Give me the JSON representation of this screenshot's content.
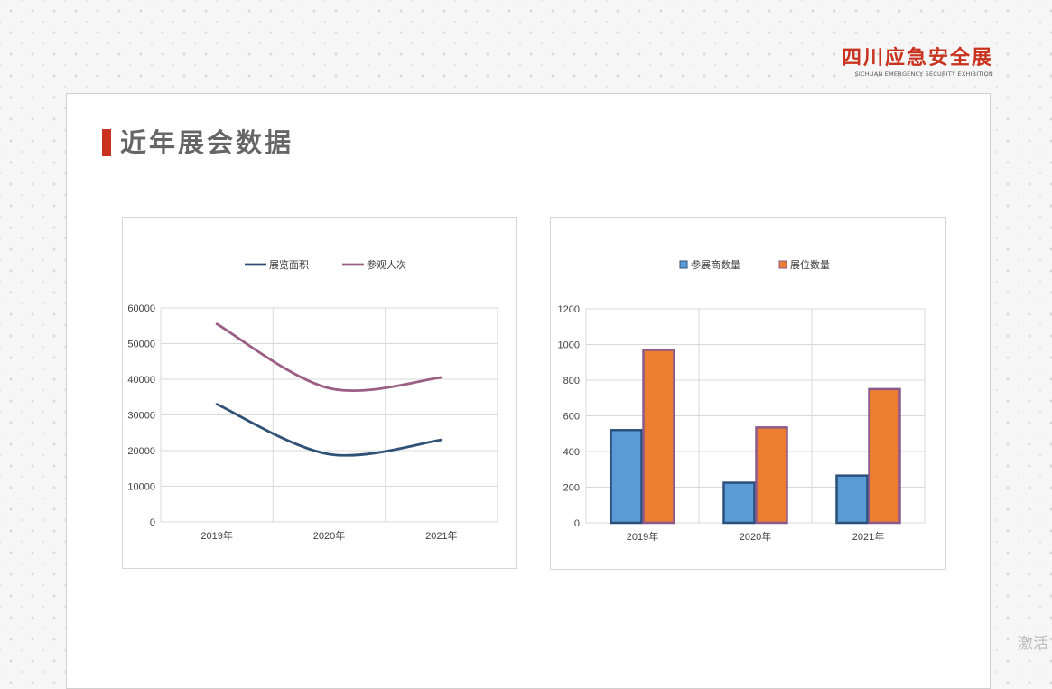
{
  "brand": {
    "name_cn": "四川应急安全展",
    "name_en": "SICHUAN EMERGENCY SECURITY EXHIBITION"
  },
  "page_title": "近年展会数据",
  "watermark": "激活",
  "colors": {
    "accent": "#c8321f",
    "series_area": "#2f5276",
    "series_visitors": "#9b5f86",
    "series_exhibitors": "#5b9bd5",
    "series_booths": "#ed7d31",
    "bar_border_exhibitors": "#2a4f7a",
    "bar_border_booths": "#8b5a8c"
  },
  "chart_data": [
    {
      "type": "line",
      "categories": [
        "2019年",
        "2020年",
        "2021年"
      ],
      "series": [
        {
          "name": "展览面积",
          "values": [
            33000,
            19000,
            23000
          ]
        },
        {
          "name": "参观人次",
          "values": [
            55500,
            37500,
            40500
          ]
        }
      ],
      "ylim": [
        0,
        60000
      ],
      "yticks": [
        0,
        10000,
        20000,
        30000,
        40000,
        50000,
        60000
      ],
      "smooth": true,
      "grid": true,
      "legend": "top-center"
    },
    {
      "type": "bar",
      "categories": [
        "2019年",
        "2020年",
        "2021年"
      ],
      "series": [
        {
          "name": "参展商数量",
          "values": [
            520,
            225,
            265
          ]
        },
        {
          "name": "展位数量",
          "values": [
            970,
            535,
            750
          ]
        }
      ],
      "ylim": [
        0,
        1200
      ],
      "yticks": [
        0,
        200,
        400,
        600,
        800,
        1000,
        1200
      ],
      "grid": true,
      "legend": "top-center"
    }
  ]
}
